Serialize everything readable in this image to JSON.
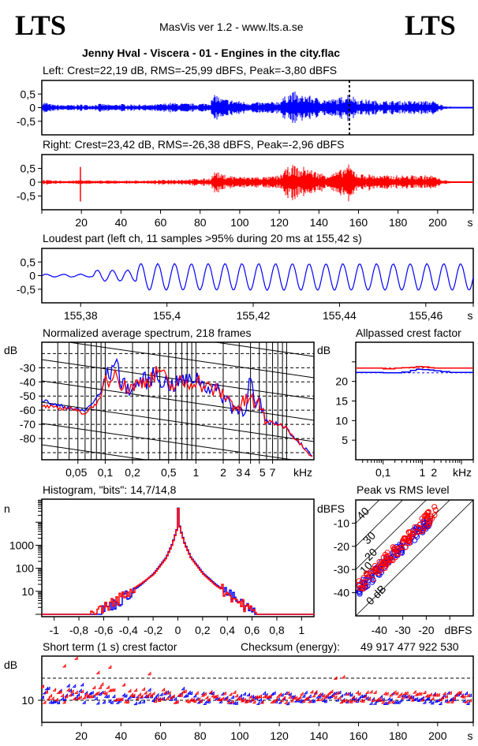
{
  "header": {
    "logo_left": "LTS",
    "logo_right": "LTS",
    "app_title": "MasVis ver 1.2 - www.lts.a.se",
    "file_title": "Jenny Hval - Viscera - 01 - Engines in the city.flac"
  },
  "colors": {
    "left": "#0000ff",
    "right": "#ff0000",
    "grid": "#000000"
  },
  "chart_data": [
    {
      "id": "left-waveform",
      "type": "area",
      "title": "Left: Crest=22,19 dB, RMS=-25,99 dBFS, Peak=-3,80 dBFS",
      "channel": "left",
      "ylim": [
        -1,
        1
      ],
      "yticks": [
        "0,5",
        "0",
        "-0,5"
      ],
      "ytick_values": [
        0.5,
        0,
        -0.5
      ],
      "xlim": [
        0,
        218
      ],
      "marker_time_s": 155.42,
      "envelope_seconds": [
        0,
        5,
        10,
        15,
        20,
        25,
        30,
        35,
        40,
        45,
        50,
        55,
        60,
        65,
        70,
        75,
        80,
        85,
        88,
        90,
        95,
        100,
        105,
        110,
        115,
        120,
        125,
        128,
        130,
        133,
        135,
        140,
        145,
        150,
        155,
        160,
        165,
        170,
        175,
        180,
        185,
        190,
        195,
        198,
        200,
        205,
        210,
        218
      ],
      "envelope_peak": [
        0.25,
        0.12,
        0.1,
        0.1,
        0.12,
        0.1,
        0.15,
        0.1,
        0.14,
        0.12,
        0.12,
        0.1,
        0.14,
        0.18,
        0.16,
        0.15,
        0.15,
        0.2,
        0.55,
        0.35,
        0.3,
        0.25,
        0.2,
        0.2,
        0.2,
        0.25,
        0.55,
        0.6,
        0.4,
        0.5,
        0.45,
        0.35,
        0.3,
        0.35,
        0.55,
        0.3,
        0.3,
        0.25,
        0.25,
        0.25,
        0.25,
        0.25,
        0.25,
        0.25,
        0.15,
        0.05,
        0.02,
        0.02
      ]
    },
    {
      "id": "right-waveform",
      "type": "area",
      "title": "Right: Crest=23,42 dB, RMS=-26,38 dBFS, Peak=-2,96 dBFS",
      "channel": "right",
      "ylim": [
        -1,
        1
      ],
      "yticks": [
        "0,5",
        "0",
        "-0,5"
      ],
      "ytick_values": [
        0.5,
        0,
        -0.5
      ],
      "xlim": [
        0,
        218
      ],
      "xticks": [
        "20",
        "40",
        "60",
        "80",
        "100",
        "120",
        "140",
        "160",
        "180",
        "200"
      ],
      "xtick_values": [
        20,
        40,
        60,
        80,
        100,
        120,
        140,
        160,
        180,
        200
      ],
      "xunit": "s",
      "spike_time_s": 19.5,
      "spike_amp": [
        0.55,
        -0.7
      ],
      "envelope_seconds": [
        0,
        5,
        10,
        15,
        20,
        25,
        30,
        35,
        40,
        45,
        50,
        55,
        60,
        65,
        70,
        75,
        80,
        85,
        88,
        90,
        95,
        100,
        105,
        110,
        115,
        120,
        125,
        128,
        130,
        133,
        135,
        140,
        145,
        150,
        155,
        160,
        165,
        170,
        175,
        180,
        185,
        190,
        195,
        198,
        200,
        205,
        210,
        218
      ],
      "envelope_peak": [
        0.1,
        0.06,
        0.06,
        0.06,
        0.08,
        0.06,
        0.06,
        0.06,
        0.06,
        0.06,
        0.06,
        0.06,
        0.08,
        0.1,
        0.1,
        0.12,
        0.12,
        0.15,
        0.45,
        0.3,
        0.25,
        0.2,
        0.2,
        0.2,
        0.2,
        0.25,
        0.6,
        0.65,
        0.45,
        0.6,
        0.5,
        0.35,
        0.3,
        0.4,
        0.65,
        0.3,
        0.3,
        0.25,
        0.25,
        0.25,
        0.25,
        0.25,
        0.25,
        0.25,
        0.15,
        0.05,
        0.02,
        0.02
      ]
    },
    {
      "id": "loudest-part",
      "type": "line",
      "title": "Loudest part (left  ch, 11 samples >95% during 20 ms at 155,42 s)",
      "ylim": [
        -1,
        1
      ],
      "yticks": [
        "0,5",
        "0",
        "-0,5"
      ],
      "ytick_values": [
        0.5,
        0,
        -0.5
      ],
      "xlim": [
        155.371,
        155.471
      ],
      "xticks": [
        "155,38",
        "155,4",
        "155,42",
        "155,44",
        "155,46"
      ],
      "xtick_values": [
        155.38,
        155.4,
        155.42,
        155.44,
        155.46
      ],
      "xunit": "s",
      "wave_segments": [
        {
          "t0": 155.371,
          "t1": 155.383,
          "amp": 0.05,
          "period": 0.004
        },
        {
          "t0": 155.383,
          "t1": 155.393,
          "amp": 0.2,
          "period": 0.0035
        },
        {
          "t0": 155.393,
          "t1": 155.471,
          "amp": 0.48,
          "period": 0.0039
        }
      ]
    },
    {
      "id": "spectrum",
      "type": "line",
      "title": "Normalized average spectrum, 218 frames",
      "ylabel": "dB",
      "xunit": "kHz",
      "xscale": "log",
      "xlim_khz": [
        0.02,
        20
      ],
      "ylim": [
        -95,
        -12
      ],
      "yticks": [
        "-30",
        "-40",
        "-50",
        "-60",
        "-70",
        "-80"
      ],
      "ytick_values": [
        -30,
        -40,
        -50,
        -60,
        -70,
        -80
      ],
      "xticks": [
        "0,05",
        "0,1",
        "0,2",
        "0,5",
        "1",
        "2",
        "3",
        "4",
        "5",
        "7"
      ],
      "xtick_values": [
        0.05,
        0.1,
        0.2,
        0.5,
        1,
        2,
        3,
        4,
        5,
        7
      ],
      "series": [
        {
          "name": "left",
          "x_khz": [
            0.02,
            0.03,
            0.04,
            0.05,
            0.06,
            0.07,
            0.08,
            0.09,
            0.1,
            0.12,
            0.13,
            0.15,
            0.2,
            0.25,
            0.3,
            0.35,
            0.4,
            0.5,
            0.6,
            0.7,
            0.8,
            1,
            1.2,
            1.5,
            2,
            2.5,
            3,
            3.5,
            4,
            4.5,
            5,
            6,
            7,
            8,
            9,
            10,
            12,
            15,
            20
          ],
          "y_db": [
            -53,
            -57,
            -58,
            -60,
            -60,
            -56,
            -51,
            -48,
            -35,
            -34,
            -20,
            -42,
            -45,
            -38,
            -40,
            -34,
            -38,
            -42,
            -42,
            -38,
            -40,
            -36,
            -42,
            -44,
            -50,
            -57,
            -60,
            -58,
            -36,
            -60,
            -56,
            -68,
            -69,
            -70,
            -70,
            -73,
            -79,
            -85,
            -95
          ]
        },
        {
          "name": "right",
          "x_khz": [
            0.02,
            0.03,
            0.04,
            0.05,
            0.06,
            0.07,
            0.08,
            0.09,
            0.1,
            0.12,
            0.13,
            0.15,
            0.2,
            0.25,
            0.3,
            0.35,
            0.4,
            0.5,
            0.6,
            0.7,
            0.8,
            1,
            1.2,
            1.5,
            2,
            2.5,
            3,
            3.5,
            4,
            4.5,
            5,
            6,
            7,
            8,
            9,
            10,
            12,
            15,
            20
          ],
          "y_db": [
            -57,
            -59,
            -58,
            -61,
            -62,
            -58,
            -55,
            -52,
            -38,
            -40,
            -26,
            -44,
            -43,
            -40,
            -38,
            -36,
            -30,
            -44,
            -42,
            -40,
            -42,
            -38,
            -43,
            -45,
            -49,
            -55,
            -58,
            -54,
            -50,
            -58,
            -55,
            -68,
            -69,
            -70,
            -71,
            -72,
            -79,
            -85,
            -95
          ]
        }
      ]
    },
    {
      "id": "allpassed-crest",
      "type": "line",
      "title": "Allpassed crest factor",
      "ylabel": "dB",
      "xunit": "kHz",
      "xscale": "log",
      "xlim_khz": [
        0.02,
        20
      ],
      "ylim": [
        0,
        30
      ],
      "yticks": [
        "20",
        "15",
        "10",
        "5"
      ],
      "ytick_values": [
        20,
        15,
        10,
        5
      ],
      "xticks": [
        "0,1",
        "1",
        "2"
      ],
      "xtick_values": [
        0.1,
        1,
        2
      ],
      "series": [
        {
          "name": "left",
          "x_khz": [
            0.02,
            0.05,
            0.1,
            0.2,
            0.3,
            0.5,
            0.7,
            1,
            1.5,
            2,
            3,
            5,
            20
          ],
          "y_db": [
            22.3,
            22.3,
            22.2,
            22.2,
            22.4,
            22.8,
            23.1,
            23.0,
            22.9,
            22.7,
            22.5,
            22.3,
            22.3
          ],
          "full_band_db": 22.19
        },
        {
          "name": "right",
          "x_khz": [
            0.02,
            0.05,
            0.1,
            0.2,
            0.3,
            0.5,
            0.7,
            1,
            1.5,
            2,
            3,
            5,
            20
          ],
          "y_db": [
            23.4,
            23.4,
            23.2,
            23.4,
            23.5,
            23.6,
            23.8,
            23.7,
            23.5,
            23.4,
            23.4,
            23.4,
            23.4
          ],
          "full_band_db": 23.42
        }
      ]
    },
    {
      "id": "histogram",
      "type": "line",
      "title": "Histogram, \"bits\": 14,7/14,8",
      "ylabel": "n",
      "yscale": "log",
      "ylim": [
        1,
        100000
      ],
      "yticks": [
        "1000",
        "100",
        "10"
      ],
      "ytick_values": [
        1000,
        100,
        10
      ],
      "xlim": [
        -1.1,
        1.1
      ],
      "xticks": [
        "-1",
        "-0,8",
        "-0,6",
        "-0,4",
        "-0,2",
        "0",
        "0,2",
        "0,4",
        "0,6",
        "0,8",
        "1"
      ],
      "xtick_values": [
        -1,
        -0.8,
        -0.6,
        -0.4,
        -0.2,
        0,
        0.2,
        0.4,
        0.6,
        0.8,
        1
      ],
      "series": [
        {
          "name": "left",
          "x": [
            -0.64,
            -0.6,
            -0.5,
            -0.4,
            -0.3,
            -0.2,
            -0.1,
            -0.05,
            -0.01,
            0,
            0.01,
            0.05,
            0.1,
            0.2,
            0.3,
            0.4,
            0.5,
            0.55,
            0.62
          ],
          "n": [
            1,
            2,
            3,
            8,
            20,
            60,
            300,
            1200,
            6000,
            100000,
            6000,
            1200,
            300,
            60,
            20,
            8,
            3,
            2,
            1
          ]
        },
        {
          "name": "right",
          "x": [
            -0.72,
            -0.6,
            -0.5,
            -0.4,
            -0.3,
            -0.2,
            -0.1,
            -0.05,
            -0.01,
            0,
            0.01,
            0.05,
            0.1,
            0.2,
            0.3,
            0.4,
            0.5,
            0.55,
            0.63
          ],
          "n": [
            1,
            2,
            4,
            10,
            22,
            55,
            280,
            1100,
            5500,
            100000,
            5500,
            1100,
            280,
            55,
            18,
            8,
            3,
            2,
            1
          ]
        }
      ]
    },
    {
      "id": "peak-vs-rms",
      "type": "scatter",
      "title": "Peak vs RMS level",
      "ylabel": "dBFS",
      "xlabel": "dBFS",
      "xlim": [
        -50,
        0
      ],
      "ylim": [
        -50,
        0
      ],
      "yticks": [
        "-10",
        "-20",
        "-30",
        "-40"
      ],
      "ytick_values": [
        -10,
        -20,
        -30,
        -40
      ],
      "xticks": [
        "-40",
        "-30",
        "-20"
      ],
      "xtick_values": [
        -40,
        -30,
        -20
      ],
      "crest_lines_db": [
        0,
        10,
        20,
        30,
        40
      ],
      "crest_line_labels": [
        "0 dB",
        "10",
        "20",
        "30",
        "40"
      ],
      "series": [
        {
          "name": "left",
          "rms_range": [
            -49,
            -18
          ],
          "crest_center_db": 10,
          "spread_db": 2.5
        },
        {
          "name": "right",
          "rms_range": [
            -49,
            -16
          ],
          "crest_center_db": 11,
          "spread_db": 3
        }
      ]
    },
    {
      "id": "short-term-crest",
      "type": "scatter",
      "title": "Short term (1 s) crest factor",
      "checksum_label": "Checksum (energy):",
      "checksum_value": "49 917 477 922 530",
      "ylabel": "dB",
      "xlim": [
        0,
        218
      ],
      "ylim": [
        0,
        30
      ],
      "yticks": [
        "10"
      ],
      "ytick_values": [
        10
      ],
      "dashed_levels_db": [
        10,
        20
      ],
      "xticks": [
        "20",
        "40",
        "60",
        "80",
        "100",
        "120",
        "140",
        "160",
        "180",
        "200"
      ],
      "xtick_values": [
        20,
        40,
        60,
        80,
        100,
        120,
        140,
        160,
        180,
        200
      ],
      "xunit": "s",
      "series": [
        {
          "name": "left",
          "typical_db": 10.5,
          "spread_db": 2.5
        },
        {
          "name": "right",
          "typical_db": 11,
          "spread_db": 2.5,
          "outliers": [
            [
              12,
              25
            ],
            [
              18,
              28.5
            ],
            [
              29,
              22
            ],
            [
              35,
              24.5
            ],
            [
              55,
              21.5
            ],
            [
              149,
              19.5
            ],
            [
              153,
              20
            ]
          ]
        }
      ]
    }
  ]
}
